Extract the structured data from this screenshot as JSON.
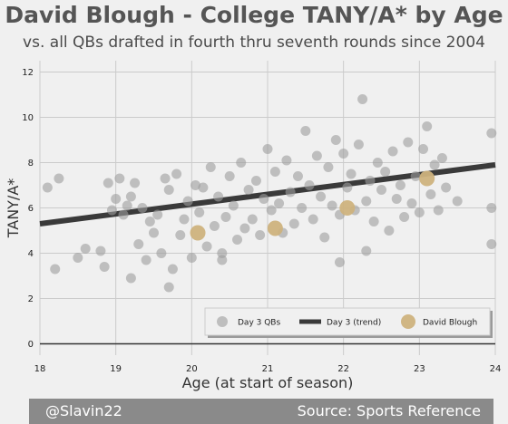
{
  "title": "David Blough - College TANY/A* by Age",
  "subtitle": "vs. all QBs drafted in fourth thru seventh rounds since 2004",
  "footer": {
    "left": "@Slavin22",
    "right": "Source: Sports Reference"
  },
  "colors": {
    "background": "#f0f0f0",
    "qb_points": "#9c9c9c",
    "trend": "#3a3a3a",
    "blough": "#cdb27d",
    "footer_band": "#8a8a8a"
  },
  "chart_data": {
    "type": "scatter",
    "xlabel": "Age (at start of season)",
    "ylabel": "TANY/A*",
    "xlim": [
      18,
      24
    ],
    "ylim": [
      -0.5,
      12.5
    ],
    "xticks": [
      18,
      19,
      20,
      21,
      22,
      23,
      24
    ],
    "yticks": [
      0,
      2,
      4,
      6,
      8,
      10,
      12
    ],
    "grid": true,
    "legend_position": "bottom-right",
    "series": [
      {
        "name": "Day 3 QBs",
        "kind": "scatter",
        "points": [
          [
            18.1,
            6.9
          ],
          [
            18.2,
            3.3
          ],
          [
            18.25,
            7.3
          ],
          [
            18.5,
            3.8
          ],
          [
            18.6,
            4.2
          ],
          [
            18.8,
            4.1
          ],
          [
            18.85,
            3.4
          ],
          [
            18.9,
            7.1
          ],
          [
            18.95,
            5.9
          ],
          [
            19.0,
            6.4
          ],
          [
            19.05,
            7.3
          ],
          [
            19.1,
            5.7
          ],
          [
            19.15,
            6.1
          ],
          [
            19.2,
            6.5
          ],
          [
            19.25,
            7.1
          ],
          [
            19.3,
            4.4
          ],
          [
            19.35,
            6.0
          ],
          [
            19.4,
            3.7
          ],
          [
            19.45,
            5.4
          ],
          [
            19.5,
            4.9
          ],
          [
            19.55,
            5.7
          ],
          [
            19.6,
            4.0
          ],
          [
            19.65,
            7.3
          ],
          [
            19.7,
            6.8
          ],
          [
            19.75,
            3.3
          ],
          [
            19.8,
            7.5
          ],
          [
            19.85,
            4.8
          ],
          [
            19.9,
            5.5
          ],
          [
            19.95,
            6.3
          ],
          [
            20.0,
            3.8
          ],
          [
            20.05,
            7.0
          ],
          [
            20.1,
            5.8
          ],
          [
            20.15,
            6.9
          ],
          [
            20.2,
            4.3
          ],
          [
            20.25,
            7.8
          ],
          [
            20.3,
            5.2
          ],
          [
            20.35,
            6.5
          ],
          [
            20.4,
            4.0
          ],
          [
            20.45,
            5.6
          ],
          [
            20.5,
            7.4
          ],
          [
            20.55,
            6.1
          ],
          [
            20.6,
            4.6
          ],
          [
            20.65,
            8.0
          ],
          [
            20.7,
            5.1
          ],
          [
            20.75,
            6.8
          ],
          [
            20.8,
            5.5
          ],
          [
            20.85,
            7.2
          ],
          [
            20.9,
            4.8
          ],
          [
            20.95,
            6.4
          ],
          [
            21.0,
            8.6
          ],
          [
            21.05,
            5.9
          ],
          [
            21.1,
            7.6
          ],
          [
            21.15,
            6.2
          ],
          [
            21.2,
            4.9
          ],
          [
            21.25,
            8.1
          ],
          [
            21.3,
            6.7
          ],
          [
            21.35,
            5.3
          ],
          [
            21.4,
            7.4
          ],
          [
            21.45,
            6.0
          ],
          [
            21.5,
            9.4
          ],
          [
            21.55,
            7.0
          ],
          [
            21.6,
            5.5
          ],
          [
            21.65,
            8.3
          ],
          [
            21.7,
            6.5
          ],
          [
            21.75,
            4.7
          ],
          [
            21.8,
            7.8
          ],
          [
            21.85,
            6.1
          ],
          [
            21.9,
            9.0
          ],
          [
            21.95,
            5.7
          ],
          [
            22.0,
            8.4
          ],
          [
            22.05,
            6.9
          ],
          [
            22.1,
            7.5
          ],
          [
            22.15,
            5.9
          ],
          [
            22.2,
            8.8
          ],
          [
            22.25,
            10.8
          ],
          [
            22.3,
            6.3
          ],
          [
            22.35,
            7.2
          ],
          [
            22.4,
            5.4
          ],
          [
            22.45,
            8.0
          ],
          [
            22.5,
            6.8
          ],
          [
            22.55,
            7.6
          ],
          [
            22.6,
            5.0
          ],
          [
            22.65,
            8.5
          ],
          [
            22.7,
            6.4
          ],
          [
            22.75,
            7.0
          ],
          [
            22.8,
            5.6
          ],
          [
            22.85,
            8.9
          ],
          [
            22.9,
            6.2
          ],
          [
            22.95,
            7.4
          ],
          [
            23.0,
            5.8
          ],
          [
            23.05,
            8.6
          ],
          [
            23.1,
            9.6
          ],
          [
            23.15,
            6.6
          ],
          [
            23.2,
            7.9
          ],
          [
            23.25,
            5.9
          ],
          [
            23.3,
            8.2
          ],
          [
            23.35,
            6.9
          ],
          [
            23.5,
            6.3
          ],
          [
            23.95,
            9.3
          ],
          [
            23.95,
            4.4
          ],
          [
            23.95,
            6.0
          ],
          [
            19.2,
            2.9
          ],
          [
            19.7,
            2.5
          ],
          [
            20.4,
            3.7
          ],
          [
            21.95,
            3.6
          ],
          [
            22.3,
            4.1
          ]
        ]
      },
      {
        "name": "Day 3 (trend)",
        "kind": "line",
        "points": [
          [
            18.0,
            5.3
          ],
          [
            24.0,
            7.9
          ]
        ]
      },
      {
        "name": "David Blough",
        "kind": "scatter",
        "points": [
          [
            20.08,
            4.9
          ],
          [
            21.1,
            5.1
          ],
          [
            22.05,
            6.0
          ],
          [
            23.1,
            7.3
          ]
        ]
      }
    ]
  }
}
